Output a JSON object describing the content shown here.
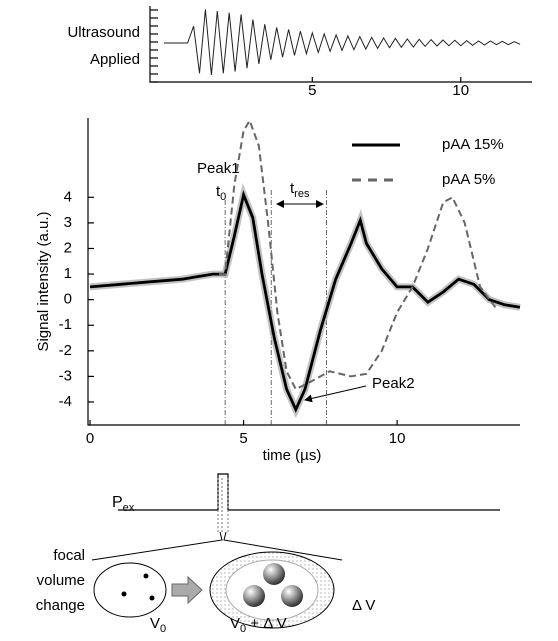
{
  "chart_data": [
    {
      "type": "line",
      "label_lines": [
        "Ultrasound",
        "Applied"
      ],
      "xlim": [
        -0.4,
        12.4
      ],
      "ylim": [
        -1.1,
        1.1
      ],
      "xticks": [
        5,
        10
      ],
      "series": [
        {
          "color": "#222222",
          "x": [
            0,
            0.8,
            1.0,
            1.2,
            1.4,
            1.6,
            1.8,
            2.0,
            2.2,
            2.4,
            2.6,
            2.8,
            3.0,
            3.2,
            3.4,
            3.6,
            3.8,
            4.0,
            4.2,
            4.4,
            4.6,
            4.8,
            5.0,
            5.2,
            5.4,
            5.6,
            5.8,
            6.0,
            6.2,
            6.4,
            6.6,
            6.8,
            7.0,
            7.2,
            7.4,
            7.6,
            7.8,
            8.0,
            8.2,
            8.4,
            8.6,
            8.8,
            9.0,
            9.2,
            9.4,
            9.6,
            9.8,
            10.0,
            10.2,
            10.4,
            10.6,
            10.8,
            11.0,
            11.2,
            11.4,
            11.6,
            11.8,
            12.0
          ],
          "values": [
            0,
            0,
            0.5,
            -0.9,
            1,
            -0.95,
            0.95,
            -0.9,
            0.9,
            -0.85,
            0.85,
            -0.75,
            0.7,
            -0.62,
            0.56,
            -0.5,
            0.46,
            -0.42,
            0.4,
            -0.37,
            0.35,
            -0.32,
            0.3,
            -0.28,
            0.27,
            -0.25,
            0.24,
            -0.22,
            0.21,
            -0.2,
            0.19,
            -0.18,
            0.17,
            -0.16,
            0.15,
            -0.14,
            0.14,
            -0.13,
            0.12,
            -0.12,
            0.11,
            -0.1,
            0.1,
            -0.09,
            0.09,
            -0.08,
            0.08,
            -0.08,
            0.07,
            -0.07,
            0.06,
            -0.06,
            0.06,
            -0.05,
            0.05,
            -0.05,
            0.04,
            -0.04
          ]
        }
      ]
    },
    {
      "type": "line",
      "x_label": "time  (µs)",
      "y_label": "Signal intensity  (a.u.)",
      "xlim": [
        0,
        14
      ],
      "ylim": [
        -4.9,
        7.1
      ],
      "xticks": [
        0,
        5,
        10
      ],
      "yticks": [
        -4,
        -3,
        -2,
        -1,
        0,
        1,
        2,
        3,
        4
      ],
      "legend": "top-right",
      "series": [
        {
          "name": "pAA 15%",
          "color": "#000000",
          "dash": false,
          "x": [
            0,
            1,
            2,
            3,
            3.5,
            4,
            4.4,
            4.7,
            5.0,
            5.3,
            5.6,
            6.0,
            6.4,
            6.7,
            7.0,
            7.5,
            8.0,
            8.5,
            8.8,
            9.0,
            9.5,
            10,
            10.5,
            11,
            11.5,
            12,
            12.5,
            13,
            13.5,
            14
          ],
          "values": [
            0.5,
            0.6,
            0.7,
            0.8,
            0.9,
            1.0,
            1.0,
            2.5,
            4.1,
            3.2,
            1,
            -1.5,
            -3.5,
            -4.3,
            -3.5,
            -1.2,
            0.8,
            2.2,
            3.1,
            2.2,
            1.2,
            0.5,
            0.5,
            -0.1,
            0.3,
            0.8,
            0.6,
            0,
            -0.2,
            -0.3
          ]
        },
        {
          "name": "pAA 5%",
          "color": "#666666",
          "dash": true,
          "x": [
            4.2,
            4.4,
            4.7,
            5.0,
            5.2,
            5.5,
            5.8,
            6.1,
            6.4,
            6.7,
            7.2,
            7.8,
            8.5,
            9.0,
            9.5,
            10,
            10.5,
            11,
            11.5,
            11.8,
            12.2,
            12.7,
            13.2
          ],
          "values": [
            1.0,
            1.0,
            4.5,
            6.6,
            7.0,
            6.0,
            3.0,
            -0.5,
            -2.8,
            -3.5,
            -3.2,
            -2.8,
            -3.0,
            -2.9,
            -2.0,
            -0.5,
            0.5,
            2.0,
            3.8,
            4.0,
            3.0,
            0.5,
            -0.3
          ]
        }
      ],
      "vlines": [
        4.4,
        5.9,
        7.7
      ],
      "annotations": {
        "peak1": "Peak1",
        "peak2": "Peak2",
        "t0": [
          "t",
          "0"
        ],
        "tres": [
          "t",
          "res"
        ]
      }
    }
  ],
  "pulse": {
    "label": [
      "P",
      "ex"
    ]
  },
  "diagram": {
    "left_label": [
      "focal",
      "volume",
      "change"
    ],
    "v0": [
      "V",
      "0"
    ],
    "v1": [
      "V",
      "0",
      " + Δ V"
    ],
    "dv": "Δ V"
  }
}
